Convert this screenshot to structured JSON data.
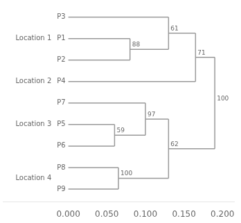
{
  "chart_data": {
    "type": "dendrogram",
    "xlim": [
      -0.085,
      0.215
    ],
    "xticks": [
      {
        "value": 0.0,
        "label": "0.000"
      },
      {
        "value": 0.05,
        "label": "0.050"
      },
      {
        "value": 0.1,
        "label": "0.100"
      },
      {
        "value": 0.15,
        "label": "0.150"
      },
      {
        "value": 0.2,
        "label": "0.200"
      }
    ],
    "grid": false,
    "color": "#999999",
    "tree": {
      "height": 0.19,
      "support": 100,
      "children": [
        {
          "height": 0.165,
          "support": 71,
          "children": [
            {
              "height": 0.13,
              "support": 61,
              "children": [
                {
                  "name": "P3",
                  "height": 0
                },
                {
                  "height": 0.08,
                  "support": 88,
                  "children": [
                    {
                      "name": "P1",
                      "height": 0
                    },
                    {
                      "name": "P2",
                      "height": 0
                    }
                  ]
                }
              ]
            },
            {
              "name": "P4",
              "height": 0
            }
          ]
        },
        {
          "height": 0.13,
          "support": 62,
          "children": [
            {
              "height": 0.1,
              "support": 97,
              "children": [
                {
                  "name": "P7",
                  "height": 0
                },
                {
                  "height": 0.06,
                  "support": 59,
                  "children": [
                    {
                      "name": "P5",
                      "height": 0
                    },
                    {
                      "name": "P6",
                      "height": 0
                    }
                  ]
                }
              ]
            },
            {
              "height": 0.065,
              "support": 100,
              "children": [
                {
                  "name": "P8",
                  "height": 0
                },
                {
                  "name": "P9",
                  "height": 0
                }
              ]
            }
          ]
        }
      ]
    },
    "groups": [
      {
        "text": "Location 1",
        "leaves": [
          "P3",
          "P1",
          "P2"
        ]
      },
      {
        "text": "Location 2",
        "leaves": [
          "P4"
        ]
      },
      {
        "text": "Location 3",
        "leaves": [
          "P7",
          "P5",
          "P6"
        ]
      },
      {
        "text": "Location 4",
        "leaves": [
          "P8",
          "P9"
        ]
      }
    ]
  }
}
